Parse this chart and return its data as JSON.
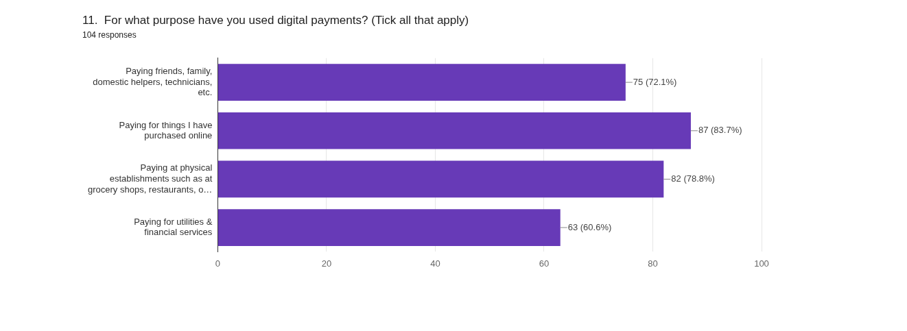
{
  "chart_data": {
    "type": "bar",
    "orientation": "horizontal",
    "title": "11.  For what purpose have you used digital payments? (Tick all that apply)",
    "subtitle": "104 responses",
    "categories": [
      "Paying friends, family, domestic helpers, technicians, etc.",
      "Paying for things I have purchased online",
      "Paying at physical establishments such as at grocery shops, restaurants, o…",
      "Paying for utilities & financial services"
    ],
    "values": [
      75,
      87,
      82,
      63
    ],
    "value_labels": [
      "75 (72.1%)",
      "87 (83.7%)",
      "82 (78.8%)",
      "63 (60.6%)"
    ],
    "color": "#673ab7",
    "xlim": [
      0,
      100
    ],
    "xticks": [
      0,
      20,
      40,
      60,
      80,
      100
    ],
    "grid": "x",
    "legend": false
  }
}
